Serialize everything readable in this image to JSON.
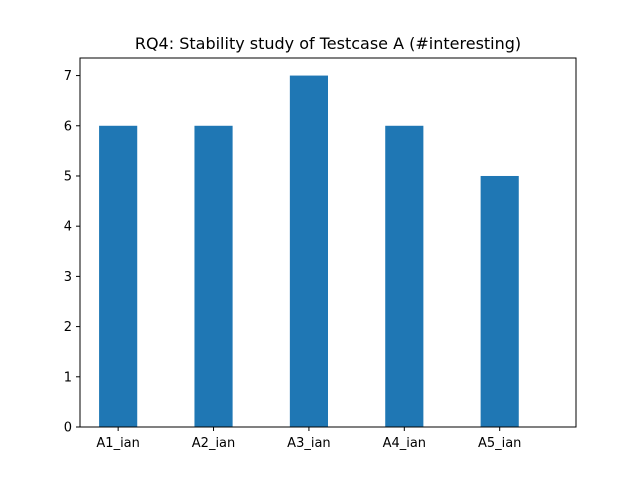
{
  "chart_data": {
    "type": "bar",
    "title": "RQ4: Stability study of Testcase A (#interesting)",
    "categories": [
      "A1_ian",
      "A2_ian",
      "A3_ian",
      "A4_ian",
      "A5_ian"
    ],
    "values": [
      6,
      6,
      7,
      6,
      5
    ],
    "ylim": [
      0,
      7.35
    ],
    "yticks": [
      "0",
      "1",
      "2",
      "3",
      "4",
      "5",
      "6",
      "7"
    ],
    "bar_color": "#1f77b4",
    "grid": false,
    "legend": "none"
  }
}
